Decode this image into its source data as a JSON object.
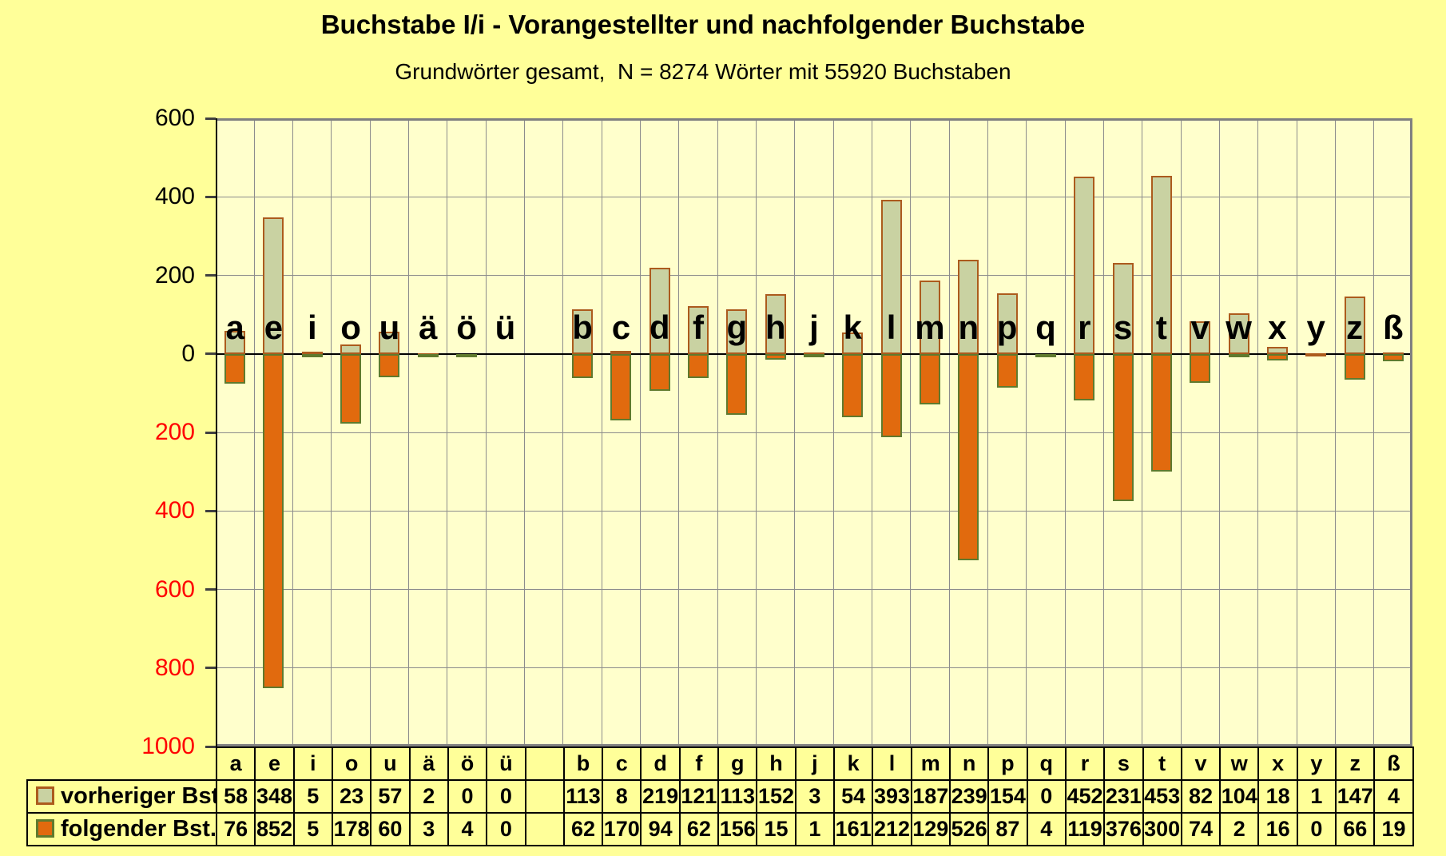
{
  "chart_data": {
    "type": "bar",
    "title": "Buchstabe I/i - Vorangestellter und nachfolgender Buchstabe",
    "subtitle": "Grundwörter gesamt,  N = 8274 Wörter mit 55920 Buchstaben",
    "categories": [
      "a",
      "e",
      "i",
      "o",
      "u",
      "ä",
      "ö",
      "ü",
      "",
      "b",
      "c",
      "d",
      "f",
      "g",
      "h",
      "j",
      "k",
      "l",
      "m",
      "n",
      "p",
      "q",
      "r",
      "s",
      "t",
      "v",
      "w",
      "x",
      "y",
      "z",
      "ß"
    ],
    "series": [
      {
        "name": "vorheriger Bst.",
        "direction": "up",
        "fill": "#C9D2A2",
        "border": "#AC5B1D",
        "values": [
          58,
          348,
          5,
          23,
          57,
          2,
          0,
          0,
          null,
          113,
          8,
          219,
          121,
          113,
          152,
          3,
          54,
          393,
          187,
          239,
          154,
          0,
          452,
          231,
          453,
          82,
          104,
          18,
          1,
          147,
          4
        ]
      },
      {
        "name": "folgender Bst.",
        "direction": "down",
        "fill": "#E16A0E",
        "border": "#5F7A2E",
        "values": [
          76,
          852,
          5,
          178,
          60,
          3,
          4,
          0,
          null,
          62,
          170,
          94,
          62,
          156,
          15,
          1,
          161,
          212,
          129,
          526,
          87,
          4,
          119,
          376,
          300,
          74,
          2,
          16,
          0,
          66,
          19
        ]
      }
    ],
    "ylim": [
      -1000,
      600
    ],
    "y_ticks": [
      600,
      400,
      200,
      0,
      -200,
      -400,
      -600,
      -800,
      -1000
    ],
    "grid": true,
    "legend_position": "table-rows-left",
    "axis_colors": {
      "positive_labels": "#000000",
      "negative_labels": "#FF0000"
    }
  },
  "colors": {
    "page_bg": "#FFFF99",
    "plot_bg": "#FFFFCC",
    "gridline": "#8C8C8C",
    "plot_border": "#808080",
    "zero_line": "#000000"
  }
}
